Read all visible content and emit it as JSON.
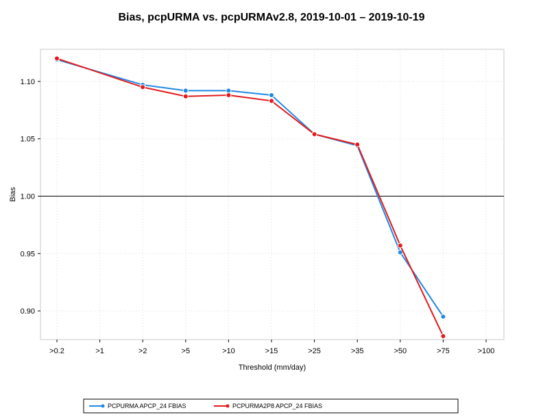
{
  "chart_data": {
    "type": "line",
    "title": "Bias, pcpURMA vs. pcpURMAv2.8, 2019-10-01 – 2019-10-19",
    "xlabel": "Threshold (mm/day)",
    "ylabel": "Bias",
    "categories": [
      ">0.2",
      ">1",
      ">2",
      ">5",
      ">10",
      ">15",
      ">25",
      ">35",
      ">50",
      ">75",
      ">100"
    ],
    "ylim": [
      0.875,
      1.128
    ],
    "yticks": [
      0.9,
      0.95,
      1.0,
      1.05,
      1.1
    ],
    "ytick_labels": [
      "0.90",
      "0.95",
      "1.00",
      "1.05",
      "1.10"
    ],
    "reference_line": 1.0,
    "grid": true,
    "legend_position": "bottom",
    "series": [
      {
        "name": "PCPURMA APCP_24 FBIAS",
        "color": "#1e88e5",
        "values": [
          1.119,
          null,
          1.097,
          1.092,
          1.092,
          1.088,
          1.054,
          1.044,
          0.951,
          0.895,
          null
        ]
      },
      {
        "name": "PCPURMA2P8 APCP_24 FBIAS",
        "color": "#e31a1c",
        "values": [
          1.12,
          null,
          1.095,
          1.087,
          1.088,
          1.083,
          1.054,
          1.045,
          0.957,
          0.878,
          null
        ]
      }
    ]
  }
}
